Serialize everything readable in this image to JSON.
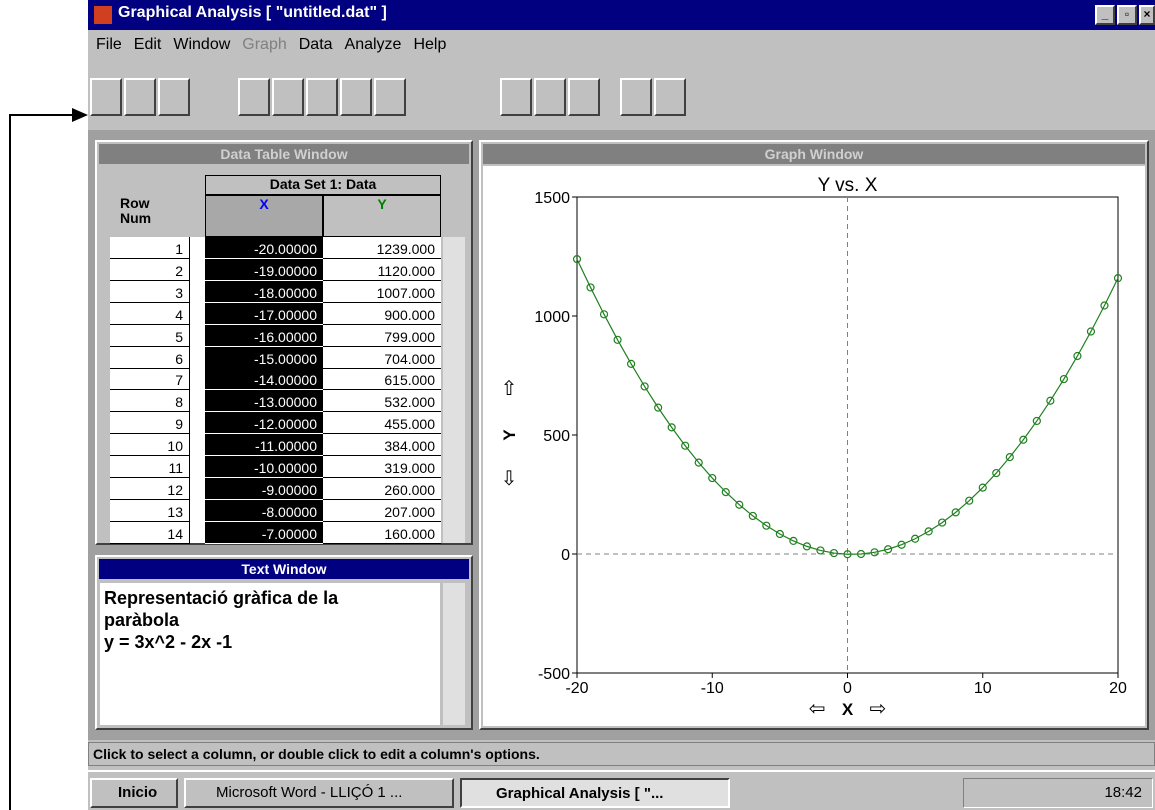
{
  "title_bar": {
    "title": "Graphical Analysis [ \"untitled.dat\" ]"
  },
  "menu": [
    "File",
    "Edit",
    "Window",
    "Graph",
    "Data",
    "Analyze",
    "Help"
  ],
  "data_table": {
    "window_title": "Data Table Window",
    "row_header": [
      "Row",
      "Num"
    ],
    "data_set": "Data Set 1: Data",
    "columns": [
      "X",
      "Y"
    ],
    "rows": [
      [
        "1",
        "-20.00000",
        "1239.000"
      ],
      [
        "2",
        "-19.00000",
        "1120.000"
      ],
      [
        "3",
        "-18.00000",
        "1007.000"
      ],
      [
        "4",
        "-17.00000",
        "900.000"
      ],
      [
        "5",
        "-16.00000",
        "799.000"
      ],
      [
        "6",
        "-15.00000",
        "704.000"
      ],
      [
        "7",
        "-14.00000",
        "615.000"
      ],
      [
        "8",
        "-13.00000",
        "532.000"
      ],
      [
        "9",
        "-12.00000",
        "455.000"
      ],
      [
        "10",
        "-11.00000",
        "384.000"
      ],
      [
        "11",
        "-10.00000",
        "319.000"
      ],
      [
        "12",
        "-9.00000",
        "260.000"
      ],
      [
        "13",
        "-8.00000",
        "207.000"
      ],
      [
        "14",
        "-7.00000",
        "160.000"
      ]
    ]
  },
  "text_window": {
    "window_title": "Text Window",
    "lines": [
      "Representació gràfica de la",
      "paràbola",
      "y = 3x^2 - 2x -1"
    ]
  },
  "chart_data": {
    "type": "line",
    "window_title": "Graph Window",
    "title": "Y vs. X",
    "x_label": "X",
    "y_label": "Y",
    "color": "#208020",
    "x": [
      -20,
      -19,
      -18,
      -17,
      -16,
      -15,
      -14,
      -13,
      -12,
      -11,
      -10,
      -9,
      -8,
      -7,
      -6,
      -5,
      -4,
      -3,
      -2,
      -1,
      0,
      1,
      2,
      3,
      4,
      5,
      6,
      7,
      8,
      9,
      10,
      11,
      12,
      13,
      14,
      15,
      16,
      17,
      18,
      19,
      20
    ],
    "values": [
      1239,
      1120,
      1007,
      900,
      799,
      704,
      615,
      532,
      455,
      384,
      319,
      260,
      207,
      160,
      119,
      84,
      55,
      32,
      15,
      4,
      -1,
      0,
      7,
      20,
      39,
      64,
      95,
      132,
      175,
      224,
      279,
      340,
      407,
      480,
      559,
      644,
      735,
      832,
      935,
      1044,
      1159
    ],
    "xlim": [
      -20,
      20
    ],
    "ylim": [
      -500,
      1500
    ],
    "xticks": [
      -20,
      -10,
      0,
      10,
      20
    ],
    "yticks": [
      -500,
      0,
      500,
      1000,
      1500
    ]
  },
  "status_bar": "Click to select a column, or double click to edit a column's options.",
  "taskbar": {
    "start": "Inicio",
    "tasks": [
      "Microsoft Word - LLIÇÓ 1 ...",
      "Graphical Analysis [ \"..."
    ],
    "clock": "18:42"
  }
}
